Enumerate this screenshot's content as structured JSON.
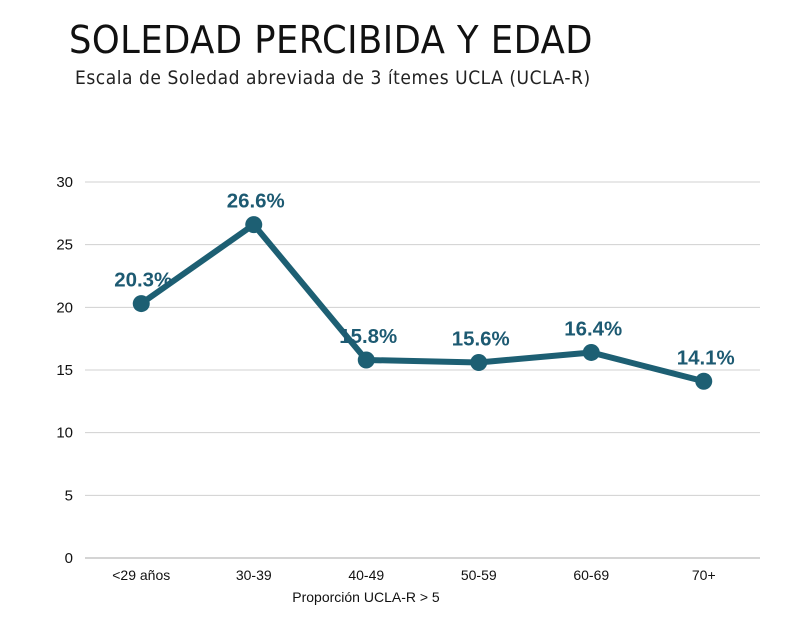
{
  "chart_data": {
    "type": "line",
    "title": "SOLEDAD PERCIBIDA Y EDAD",
    "subtitle": "Escala de Soledad abreviada de 3 ítemes UCLA (UCLA-R)",
    "categories": [
      "<29 años",
      "30-39",
      "40-49",
      "50-59",
      "60-69",
      "70+"
    ],
    "series": [
      {
        "name": "Proporción UCLA-R > 5",
        "values": [
          20.3,
          26.6,
          15.8,
          15.6,
          16.4,
          14.1
        ],
        "labels": [
          "20.3%",
          "26.6%",
          "15.8%",
          "15.6%",
          "16.4%",
          "14.1%"
        ],
        "color": "#1d5f73"
      }
    ],
    "xlabel": "Proporción UCLA-R > 5",
    "ylabel": "",
    "ylim": [
      0,
      30
    ],
    "yticks": [
      0,
      5,
      10,
      15,
      20,
      25,
      30
    ],
    "grid": true,
    "gridColor": "#d0d0d0",
    "legend": "none"
  }
}
